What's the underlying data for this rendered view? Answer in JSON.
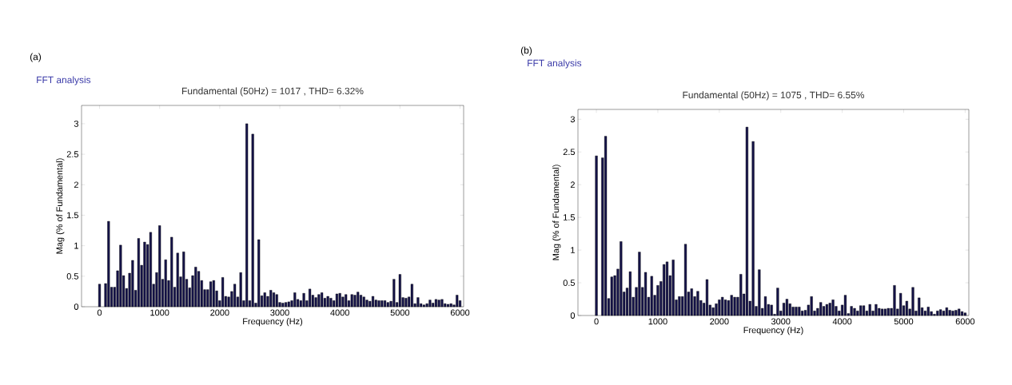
{
  "chart_data": [
    {
      "type": "bar",
      "title": "Fundamental (50Hz) = 1017 , THD= 6.32%",
      "xlabel": "Frequency (Hz)",
      "ylabel": "Mag (% of Fundamental)",
      "annotations": [
        "(a)",
        "FFT analysis"
      ],
      "x": [
        0,
        50,
        100,
        150,
        200,
        250,
        300,
        350,
        400,
        450,
        500,
        550,
        600,
        650,
        700,
        750,
        800,
        850,
        900,
        950,
        1000,
        1050,
        1100,
        1150,
        1200,
        1250,
        1300,
        1350,
        1400,
        1450,
        1500,
        1550,
        1600,
        1650,
        1700,
        1750,
        1800,
        1850,
        1900,
        1950,
        2000,
        2050,
        2100,
        2150,
        2200,
        2250,
        2300,
        2350,
        2400,
        2450,
        2500,
        2550,
        2600,
        2650,
        2700,
        2750,
        2800,
        2850,
        2900,
        2950,
        3000,
        3050,
        3100,
        3150,
        3200,
        3250,
        3300,
        3350,
        3400,
        3450,
        3500,
        3550,
        3600,
        3650,
        3700,
        3750,
        3800,
        3850,
        3900,
        3950,
        4000,
        4050,
        4100,
        4150,
        4200,
        4250,
        4300,
        4350,
        4400,
        4450,
        4500,
        4550,
        4600,
        4650,
        4700,
        4750,
        4800,
        4850,
        4900,
        4950,
        5000,
        5050,
        5100,
        5150,
        5200,
        5250,
        5300,
        5350,
        5400,
        5450,
        5500,
        5550,
        5600,
        5650,
        5700,
        5750,
        5800,
        5850,
        5900,
        5950,
        6000
      ],
      "values": [
        0.37,
        null,
        0.38,
        1.4,
        0.32,
        0.32,
        0.59,
        1.01,
        0.51,
        0.3,
        0.55,
        0.76,
        0.27,
        1.12,
        0.68,
        1.06,
        1.02,
        1.22,
        0.37,
        0.56,
        1.33,
        0.45,
        0.77,
        0.43,
        1.14,
        0.32,
        0.88,
        0.49,
        0.9,
        0.45,
        0.31,
        0.51,
        0.65,
        0.58,
        0.43,
        0.28,
        0.28,
        0.41,
        0.43,
        0.26,
        0.1,
        0.48,
        0.17,
        0.16,
        0.25,
        0.37,
        0.16,
        0.56,
        0.1,
        3.0,
        0.1,
        2.83,
        0.06,
        1.1,
        0.18,
        0.23,
        0.17,
        0.27,
        0.23,
        0.2,
        0.07,
        0.06,
        0.07,
        0.08,
        0.1,
        0.23,
        0.12,
        0.1,
        0.22,
        0.1,
        0.29,
        0.19,
        0.15,
        0.2,
        0.23,
        0.14,
        0.17,
        0.14,
        0.1,
        0.21,
        0.22,
        0.16,
        0.2,
        0.1,
        0.2,
        0.19,
        0.24,
        0.19,
        0.16,
        0.11,
        0.09,
        0.17,
        0.11,
        0.1,
        0.1,
        0.1,
        0.07,
        0.09,
        0.45,
        0.07,
        0.53,
        0.15,
        0.14,
        0.16,
        0.37,
        0.05,
        0.15,
        0.05,
        0.03,
        0.05,
        0.11,
        0.06,
        0.12,
        0.11,
        0.12,
        0.05,
        0.04,
        0.05,
        0.03,
        0.19,
        0.1
      ],
      "color": "#15134a",
      "xlim": [
        -300,
        6060
      ],
      "ylim": [
        0,
        3.3
      ],
      "xticks": [
        0,
        1000,
        2000,
        3000,
        4000,
        5000,
        6000
      ],
      "yticks": [
        0,
        0.5,
        1,
        1.5,
        2,
        2.5,
        3
      ]
    },
    {
      "type": "bar",
      "title": "Fundamental (50Hz) = 1075 , THD= 6.55%",
      "xlabel": "Frequency (Hz)",
      "ylabel": "Mag (% of Fundamental)",
      "annotations": [
        "(b)",
        "FFT analysis"
      ],
      "x": [
        0,
        50,
        100,
        150,
        200,
        250,
        300,
        350,
        400,
        450,
        500,
        550,
        600,
        650,
        700,
        750,
        800,
        850,
        900,
        950,
        1000,
        1050,
        1100,
        1150,
        1200,
        1250,
        1300,
        1350,
        1400,
        1450,
        1500,
        1550,
        1600,
        1650,
        1700,
        1750,
        1800,
        1850,
        1900,
        1950,
        2000,
        2050,
        2100,
        2150,
        2200,
        2250,
        2300,
        2350,
        2400,
        2450,
        2500,
        2550,
        2600,
        2650,
        2700,
        2750,
        2800,
        2850,
        2900,
        2950,
        3000,
        3050,
        3100,
        3150,
        3200,
        3250,
        3300,
        3350,
        3400,
        3450,
        3500,
        3550,
        3600,
        3650,
        3700,
        3750,
        3800,
        3850,
        3900,
        3950,
        4000,
        4050,
        4100,
        4150,
        4200,
        4250,
        4300,
        4350,
        4400,
        4450,
        4500,
        4550,
        4600,
        4650,
        4700,
        4750,
        4800,
        4850,
        4900,
        4950,
        5000,
        5050,
        5100,
        5150,
        5200,
        5250,
        5300,
        5350,
        5400,
        5450,
        5500,
        5550,
        5600,
        5650,
        5700,
        5750,
        5800,
        5850,
        5900,
        5950,
        6000
      ],
      "values": [
        2.44,
        null,
        2.41,
        2.74,
        0.26,
        0.59,
        0.61,
        0.71,
        1.13,
        0.36,
        0.42,
        0.67,
        0.28,
        0.43,
        0.97,
        0.43,
        0.66,
        0.28,
        0.6,
        0.31,
        0.46,
        0.52,
        0.78,
        0.82,
        0.61,
        0.85,
        0.24,
        0.29,
        0.29,
        1.09,
        0.36,
        0.41,
        0.29,
        0.37,
        0.23,
        0.19,
        0.55,
        0.16,
        0.12,
        0.18,
        0.24,
        0.28,
        0.24,
        0.23,
        0.31,
        0.28,
        0.28,
        0.63,
        0.33,
        2.88,
        0.22,
        2.66,
        0.14,
        0.7,
        0.11,
        0.29,
        0.17,
        0.16,
        0.02,
        0.42,
        0.07,
        0.19,
        0.25,
        0.18,
        0.13,
        0.13,
        0.13,
        0.07,
        0.08,
        0.16,
        0.29,
        0.07,
        0.11,
        0.2,
        0.14,
        0.17,
        0.19,
        0.24,
        0.14,
        0.07,
        0.16,
        0.31,
        0.03,
        0.14,
        0.11,
        0.07,
        0.15,
        0.15,
        0.07,
        0.17,
        0.07,
        0.17,
        0.11,
        0.1,
        0.1,
        0.11,
        0.11,
        0.46,
        0.1,
        0.34,
        0.15,
        0.22,
        0.1,
        0.43,
        0.07,
        0.27,
        0.12,
        0.07,
        0.13,
        0.06,
        0.02,
        0.07,
        0.09,
        0.07,
        0.12,
        0.08,
        0.07,
        0.08,
        0.1,
        0.06,
        0.04
      ],
      "color": "#15134a",
      "xlim": [
        -300,
        6060
      ],
      "ylim": [
        0,
        3.15
      ],
      "xticks": [
        0,
        1000,
        2000,
        3000,
        4000,
        5000,
        6000
      ],
      "yticks": [
        0,
        0.5,
        1,
        1.5,
        2,
        2.5,
        3
      ]
    }
  ]
}
